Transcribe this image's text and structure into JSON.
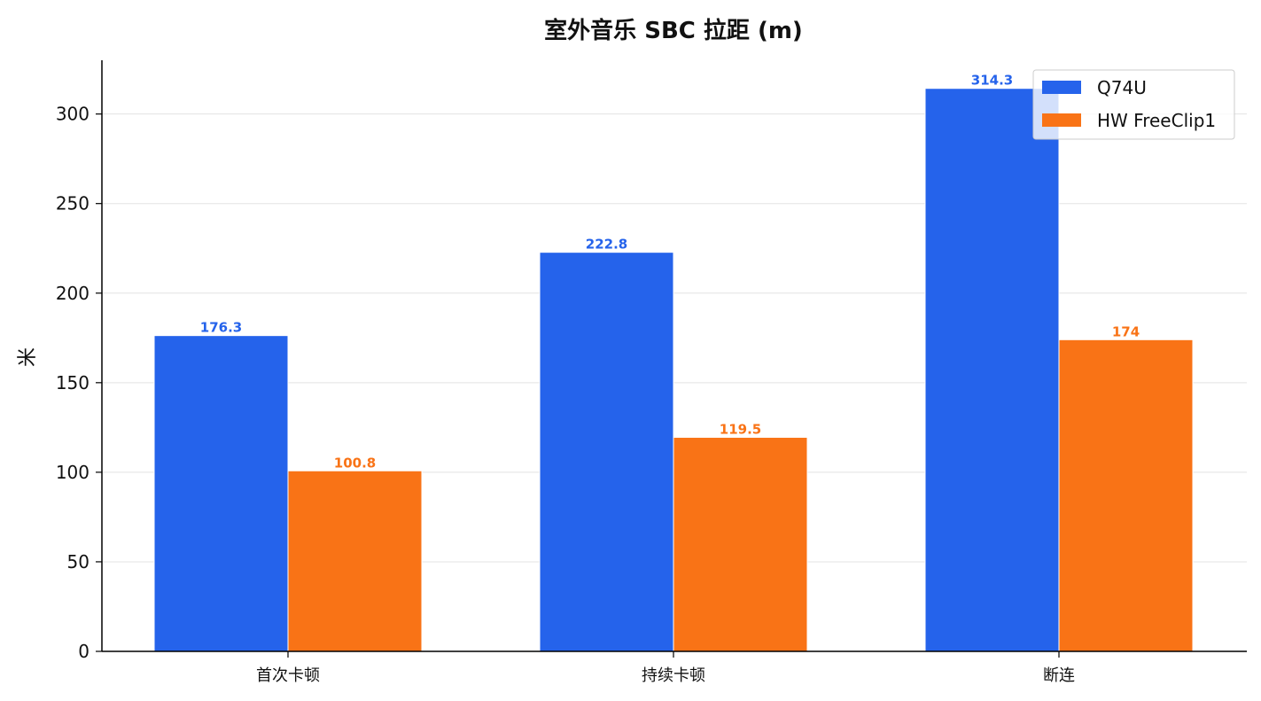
{
  "chart_data": {
    "type": "bar",
    "title": "室外音乐 SBC 拉距 (m)",
    "xlabel": "",
    "ylabel": "米",
    "categories": [
      "首次卡顿",
      "持续卡顿",
      "断连"
    ],
    "series": [
      {
        "name": "Q74U",
        "values": [
          176.3,
          222.8,
          314.3
        ],
        "labels": [
          "176.3",
          "222.8",
          "314.3"
        ],
        "color": "#2563EB"
      },
      {
        "name": "HW FreeClip1",
        "values": [
          100.8,
          119.5,
          174
        ],
        "labels": [
          "100.8",
          "119.5",
          "174"
        ],
        "color": "#F97316"
      }
    ],
    "ylim": [
      0,
      330
    ],
    "yticks": [
      0,
      50,
      100,
      150,
      200,
      250,
      300
    ],
    "ytick_labels": [
      "0",
      "50",
      "100",
      "150",
      "200",
      "250",
      "300"
    ],
    "grid": true,
    "legend_position": "top-right"
  }
}
